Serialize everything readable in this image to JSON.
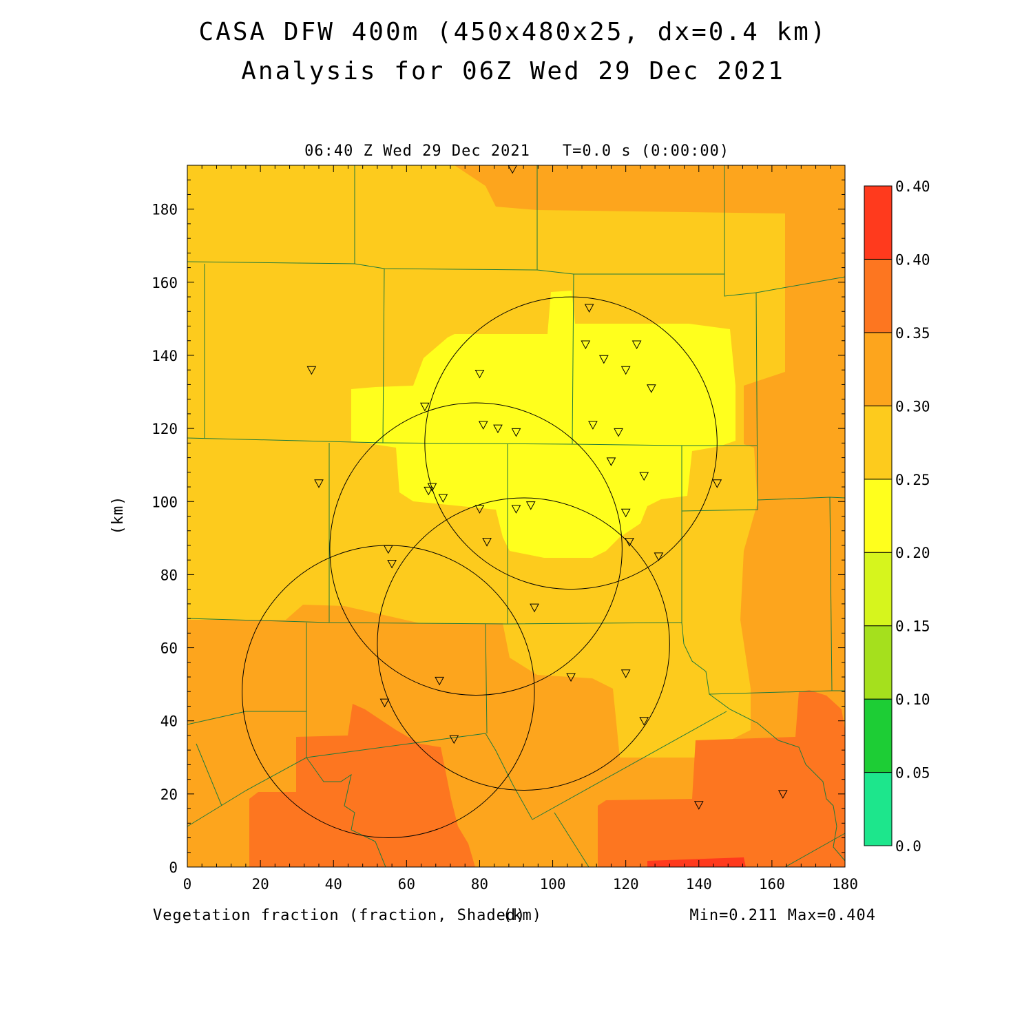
{
  "header": {
    "title_line1": "CASA DFW 400m (450x480x25, dx=0.4 km)",
    "title_line2": "Analysis for 06Z Wed 29 Dec 2021",
    "plot_time": "06:40 Z Wed 29 Dec 2021",
    "sim_time": "T=0.0 s (0:00:00)"
  },
  "footer": {
    "variable_label": "Vegetation fraction (fraction, Shaded)",
    "x_unit": "(km)",
    "minmax": "Min=0.211 Max=0.404"
  },
  "colors": {
    "c0": "#1de68c",
    "c1": "#1dcd35",
    "c2": "#a5e01d",
    "c3": "#d6f51d",
    "c4": "#ffff1d",
    "c5": "#fdcb1d",
    "c6": "#fda51d",
    "c7": "#fd7620",
    "c8": "#ff3a1d",
    "county_lines": "#1e7a3c"
  },
  "chart_data": {
    "type": "heatmap",
    "title": "CASA DFW 400m (450x480x25, dx=0.4 km)",
    "subtitle": "Analysis for 06Z Wed 29 Dec 2021",
    "xlabel": "(km)",
    "ylabel": "(km)",
    "xlim": [
      0,
      180
    ],
    "ylim": [
      0,
      192
    ],
    "xticks": [
      "0",
      "20",
      "40",
      "60",
      "80",
      "100",
      "120",
      "140",
      "160",
      "180"
    ],
    "yticks": [
      "0",
      "20",
      "40",
      "60",
      "80",
      "100",
      "120",
      "140",
      "160",
      "180"
    ],
    "colorbar": {
      "labels": [
        "0.0",
        "0.05",
        "0.10",
        "0.15",
        "0.20",
        "0.25",
        "0.30",
        "0.35",
        "0.40",
        "0.40"
      ],
      "colors": [
        "#1de68c",
        "#1dcd35",
        "#a5e01d",
        "#d6f51d",
        "#ffff1d",
        "#fdcb1d",
        "#fda51d",
        "#fd7620",
        "#ff3a1d"
      ]
    },
    "min": 0.211,
    "max": 0.404,
    "radar_rings": [
      {
        "center": [
          105,
          116
        ],
        "radius": 40
      },
      {
        "center": [
          79,
          87
        ],
        "radius": 40
      },
      {
        "center": [
          92,
          61
        ],
        "radius": 40
      },
      {
        "center": [
          55,
          48
        ],
        "radius": 40
      }
    ],
    "stations": [
      [
        89,
        191
      ],
      [
        110,
        153
      ],
      [
        109,
        143
      ],
      [
        123,
        143
      ],
      [
        114,
        139
      ],
      [
        120,
        136
      ],
      [
        127,
        131
      ],
      [
        34,
        136
      ],
      [
        80,
        135
      ],
      [
        65,
        126
      ],
      [
        81,
        121
      ],
      [
        85,
        120
      ],
      [
        90,
        119
      ],
      [
        111,
        121
      ],
      [
        118,
        119
      ],
      [
        116,
        111
      ],
      [
        125,
        107
      ],
      [
        36,
        105
      ],
      [
        67,
        104
      ],
      [
        66,
        103
      ],
      [
        70,
        101
      ],
      [
        145,
        105
      ],
      [
        80,
        98
      ],
      [
        90,
        98
      ],
      [
        94,
        99
      ],
      [
        120,
        97
      ],
      [
        55,
        87
      ],
      [
        56,
        83
      ],
      [
        82,
        89
      ],
      [
        121,
        89
      ],
      [
        129,
        85
      ],
      [
        95,
        71
      ],
      [
        69,
        51
      ],
      [
        105,
        52
      ],
      [
        120,
        53
      ],
      [
        54,
        45
      ],
      [
        125,
        40
      ],
      [
        73,
        35
      ],
      [
        140,
        17
      ],
      [
        163,
        20
      ]
    ]
  }
}
